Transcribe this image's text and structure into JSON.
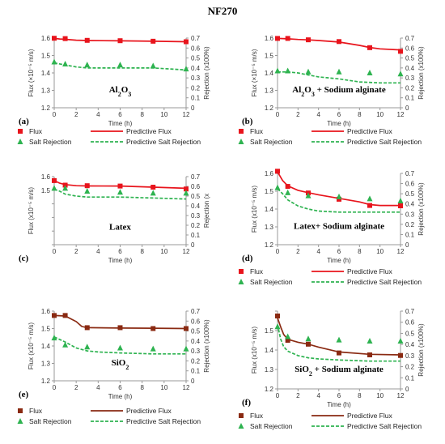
{
  "figure_title": "NF270",
  "chart_data": [
    {
      "id": "a",
      "panel_label": "(a)",
      "annotation": "Al2O3",
      "annotation_html": "Al<sub>2</sub>O<sub>3</sub>",
      "type": "line",
      "xlabel": "Time (h)",
      "ylabel": "Flux (×10⁻⁵ m/s)",
      "y2label": "Rejection (x100%)",
      "xlim": [
        0,
        12
      ],
      "xticks": [
        0,
        2,
        4,
        6,
        8,
        10,
        12
      ],
      "ylim": [
        1.2,
        1.6
      ],
      "yticks": [
        "1.2",
        "1.3",
        "1.4",
        "1.5",
        "1.6"
      ],
      "y2lim": [
        0,
        0.7
      ],
      "y2ticks": [
        "0",
        "0.1",
        "0.2",
        "0.3",
        "0.4",
        "0.5",
        "0.6",
        "0.7"
      ],
      "colors": {
        "flux": "#e8141c",
        "rejection": "#2eb350"
      },
      "series": [
        {
          "name": "Flux",
          "kind": "scatter",
          "marker": "square",
          "axis": "y",
          "x": [
            0,
            1,
            3,
            6,
            9,
            12
          ],
          "values": [
            1.599,
            1.597,
            1.587,
            1.585,
            1.582,
            1.579
          ]
        },
        {
          "name": "Predictive Flux",
          "kind": "line",
          "axis": "y",
          "x": [
            0,
            0.5,
            1,
            2,
            3,
            6,
            9,
            12
          ],
          "values": [
            1.598,
            1.595,
            1.593,
            1.588,
            1.586,
            1.584,
            1.582,
            1.579
          ]
        },
        {
          "name": "Salt Rejection",
          "kind": "scatter",
          "marker": "triangle",
          "axis": "y2",
          "x": [
            0,
            1,
            3,
            6,
            9,
            12
          ],
          "values": [
            0.46,
            0.44,
            0.43,
            0.43,
            0.42,
            0.39
          ]
        },
        {
          "name": "Predictive Salt Rejection",
          "kind": "line",
          "dash": true,
          "axis": "y2",
          "x": [
            0,
            0.5,
            1,
            2,
            3,
            6,
            9,
            12
          ],
          "values": [
            0.45,
            0.44,
            0.43,
            0.41,
            0.4,
            0.4,
            0.4,
            0.38
          ]
        }
      ],
      "legend": [
        "Flux",
        "Predictive Flux",
        "Salt Rejection",
        "Predictive Salt Rejection"
      ]
    },
    {
      "id": "b",
      "panel_label": "(b)",
      "annotation": "Al2O3 + Sodium alginate",
      "annotation_html": "Al<sub>2</sub>O<sub>3</sub> + Sodium alginate",
      "type": "line",
      "xlabel": "Time (h)",
      "ylabel": "Flux (×10⁻⁵ m/s)",
      "y2label": "Rejection (x100%)",
      "xlim": [
        0,
        12
      ],
      "xticks": [
        0,
        2,
        4,
        6,
        8,
        10,
        12
      ],
      "ylim": [
        1.2,
        1.6
      ],
      "yticks": [
        "1.2",
        "1.3",
        "1.4",
        "1.5",
        "1.6"
      ],
      "y2lim": [
        0,
        0.7
      ],
      "y2ticks": [
        "0",
        "0.1",
        "0.2",
        "0.3",
        "0.4",
        "0.5",
        "0.6",
        "0.7"
      ],
      "colors": {
        "flux": "#e8141c",
        "rejection": "#2eb350"
      },
      "series": [
        {
          "name": "Flux",
          "kind": "scatter",
          "marker": "square",
          "axis": "y",
          "x": [
            0,
            1,
            3,
            6,
            9,
            12
          ],
          "values": [
            1.598,
            1.598,
            1.59,
            1.58,
            1.545,
            1.524
          ]
        },
        {
          "name": "Predictive Flux",
          "kind": "line",
          "axis": "y",
          "x": [
            0,
            1,
            2,
            3,
            4,
            6,
            8,
            9,
            10,
            12
          ],
          "values": [
            1.598,
            1.596,
            1.592,
            1.59,
            1.586,
            1.577,
            1.558,
            1.546,
            1.538,
            1.532
          ]
        },
        {
          "name": "Salt Rejection",
          "kind": "scatter",
          "marker": "triangle",
          "axis": "y2",
          "x": [
            0,
            1,
            3,
            6,
            9,
            12
          ],
          "values": [
            0.37,
            0.37,
            0.36,
            0.36,
            0.35,
            0.34
          ]
        },
        {
          "name": "Predictive Salt Rejection",
          "kind": "line",
          "dash": true,
          "axis": "y2",
          "x": [
            0,
            1,
            2,
            3,
            4,
            6,
            8,
            10,
            12
          ],
          "values": [
            0.36,
            0.36,
            0.35,
            0.33,
            0.31,
            0.29,
            0.26,
            0.25,
            0.25
          ]
        }
      ],
      "legend": [
        "Flux",
        "Predictive Flux",
        "Salt Rejection",
        "Predictive Salt Rejection"
      ]
    },
    {
      "id": "c",
      "panel_label": "(c)",
      "annotation": "Latex",
      "annotation_html": "Latex",
      "type": "line",
      "xlabel": "Time (h)",
      "ylabel": "Flux (x10⁻⁵ m/s)",
      "y2label": "Rejection (x",
      "xlim": [
        0,
        12
      ],
      "xticks": [
        0,
        2,
        4,
        6,
        8,
        10,
        12
      ],
      "ylim": [
        1.0,
        1.6
      ],
      "yticks": [
        "",
        "",
        "",
        "",
        "1.5",
        "1.6"
      ],
      "y2lim": [
        0,
        0.7
      ],
      "y2ticks": [
        "0",
        "0.1",
        "0.2",
        "0.3",
        "0.4",
        "0.5",
        "0.6",
        "0.7"
      ],
      "colors": {
        "flux": "#e8141c",
        "rejection": "#2eb350"
      },
      "series": [
        {
          "name": "Flux",
          "kind": "scatter",
          "marker": "square",
          "axis": "y",
          "x": [
            0,
            1,
            3,
            6,
            9,
            12
          ],
          "values": [
            1.565,
            1.525,
            1.52,
            1.517,
            1.507,
            1.491
          ]
        },
        {
          "name": "Predictive Flux",
          "kind": "line",
          "axis": "y",
          "x": [
            0,
            0.5,
            1,
            2,
            3,
            6,
            9,
            12
          ],
          "values": [
            1.565,
            1.542,
            1.53,
            1.52,
            1.518,
            1.517,
            1.507,
            1.497
          ]
        },
        {
          "name": "Salt Rejection",
          "kind": "scatter",
          "marker": "triangle",
          "axis": "y2",
          "x": [
            0,
            1,
            3,
            6,
            9,
            12
          ],
          "values": [
            0.58,
            0.58,
            0.55,
            0.54,
            0.53,
            0.53
          ]
        },
        {
          "name": "Predictive Salt Rejection",
          "kind": "line",
          "dash": true,
          "axis": "y2",
          "x": [
            0,
            0.5,
            1,
            2,
            3,
            6,
            9,
            12
          ],
          "values": [
            0.57,
            0.55,
            0.52,
            0.5,
            0.49,
            0.49,
            0.48,
            0.47
          ]
        }
      ],
      "legend": []
    },
    {
      "id": "d",
      "panel_label": "(d)",
      "annotation": "Latex+ Sodium alginate",
      "annotation_html": "Latex+ Sodium alginate",
      "type": "line",
      "xlabel": "Time (h)",
      "ylabel": "Flux (x10⁻⁵ m/s)",
      "y2label": "Rejection (x100%)",
      "xlim": [
        0,
        12
      ],
      "xticks": [
        0,
        2,
        4,
        6,
        8,
        10,
        12
      ],
      "ylim": [
        1.2,
        1.6
      ],
      "yticks": [
        "1.2",
        "1.3",
        "1.4",
        "1.5",
        "1.6"
      ],
      "y2lim": [
        0,
        0.7
      ],
      "y2ticks": [
        "0",
        "0.1",
        "0.2",
        "0.3",
        "0.4",
        "0.5",
        "0.6",
        "0.7"
      ],
      "colors": {
        "flux": "#e8141c",
        "rejection": "#2eb350"
      },
      "series": [
        {
          "name": "Flux",
          "kind": "scatter",
          "marker": "square",
          "axis": "y",
          "x": [
            0,
            1,
            3,
            6,
            9,
            12
          ],
          "values": [
            1.612,
            1.527,
            1.49,
            1.455,
            1.42,
            1.418
          ]
        },
        {
          "name": "Predictive Flux",
          "kind": "line",
          "axis": "y",
          "x": [
            0,
            0.5,
            1,
            2,
            3,
            4,
            6,
            8,
            9,
            10,
            12
          ],
          "values": [
            1.608,
            1.56,
            1.53,
            1.505,
            1.492,
            1.48,
            1.46,
            1.44,
            1.425,
            1.42,
            1.42
          ]
        },
        {
          "name": "Salt Rejection",
          "kind": "scatter",
          "marker": "triangle",
          "axis": "y2",
          "x": [
            0,
            1,
            3,
            6,
            9,
            12
          ],
          "values": [
            0.56,
            0.51,
            0.48,
            0.47,
            0.45,
            0.43
          ]
        },
        {
          "name": "Predictive Salt Rejection",
          "kind": "line",
          "dash": true,
          "axis": "y2",
          "x": [
            0,
            0.5,
            1,
            2,
            3,
            4,
            6,
            9,
            12
          ],
          "values": [
            0.55,
            0.5,
            0.44,
            0.38,
            0.35,
            0.33,
            0.32,
            0.32,
            0.32
          ]
        }
      ],
      "legend": [
        "Flux",
        "Predictive Flux",
        "Salt Rejection",
        "Predictive Salt Rejection"
      ]
    },
    {
      "id": "e",
      "panel_label": "(e)",
      "annotation": "SiO2",
      "annotation_html": "SiO<sub>2</sub>",
      "type": "line",
      "xlabel": "Time (h)",
      "ylabel": "Flux (x10⁻⁵ m/s)",
      "y2label": "Rejection (x100%)",
      "xlim": [
        0,
        12
      ],
      "xticks": [
        0,
        2,
        4,
        6,
        8,
        10,
        12
      ],
      "ylim": [
        1.2,
        1.6
      ],
      "yticks": [
        "1.2",
        "1.3",
        "1.4",
        "1.5",
        "1.6"
      ],
      "y2lim": [
        0,
        0.7
      ],
      "y2ticks": [
        "0",
        "0.1",
        "0.2",
        "0.3",
        "0.4",
        "0.5",
        "0.6",
        "0.7"
      ],
      "colors": {
        "flux": "#8a2a12",
        "rejection": "#2eb350"
      },
      "series": [
        {
          "name": "Flux",
          "kind": "scatter",
          "marker": "square",
          "axis": "y",
          "x": [
            0,
            1,
            3,
            6,
            9,
            12
          ],
          "values": [
            1.575,
            1.575,
            1.505,
            1.505,
            1.5,
            1.5
          ]
        },
        {
          "name": "Predictive Flux",
          "kind": "line",
          "axis": "y",
          "x": [
            0,
            1,
            2,
            2.5,
            3,
            6,
            9,
            12
          ],
          "values": [
            1.575,
            1.572,
            1.54,
            1.512,
            1.505,
            1.503,
            1.502,
            1.5
          ]
        },
        {
          "name": "Salt Rejection",
          "kind": "scatter",
          "marker": "triangle",
          "axis": "y2",
          "x": [
            0,
            1,
            3,
            6,
            9,
            12
          ],
          "values": [
            0.43,
            0.36,
            0.34,
            0.33,
            0.32,
            0.32
          ]
        },
        {
          "name": "Predictive Salt Rejection",
          "kind": "line",
          "dash": true,
          "axis": "y2",
          "x": [
            0,
            1,
            2,
            3,
            4,
            6,
            9,
            12
          ],
          "values": [
            0.44,
            0.39,
            0.33,
            0.3,
            0.29,
            0.28,
            0.27,
            0.27
          ]
        }
      ],
      "legend": [
        "Flux",
        "Predictive Flux",
        "Salt Rejection",
        "Predictive Salt Rejection"
      ]
    },
    {
      "id": "f",
      "panel_label": "(f)",
      "annotation": "SiO2 + Sodium alginate",
      "annotation_html": "SiO<sub>2</sub> + Sodium alginate",
      "type": "line",
      "xlabel": "Time (h)",
      "ylabel": "Flux (x10⁻⁵ m/s)",
      "y2label": "Rejection (x100%)",
      "xlim": [
        0,
        12
      ],
      "xticks": [
        0,
        2,
        4,
        6,
        8,
        10,
        12
      ],
      "ylim": [
        1.2,
        1.6
      ],
      "yticks": [
        "1.2",
        "1.3",
        "1.4",
        "1.5",
        ""
      ],
      "y2lim": [
        0,
        0.7
      ],
      "y2ticks": [
        "0",
        "0.1",
        "0.2",
        "0.3",
        "0.4",
        "0.5",
        "0.6",
        "0.7"
      ],
      "colors": {
        "flux": "#8a2a12",
        "rejection": "#2eb350"
      },
      "series": [
        {
          "name": "Flux",
          "kind": "scatter",
          "marker": "square",
          "axis": "y",
          "x": [
            0,
            1,
            3,
            6,
            9,
            12
          ],
          "values": [
            1.575,
            1.45,
            1.43,
            1.385,
            1.375,
            1.372
          ]
        },
        {
          "name": "Predictive Flux",
          "kind": "line",
          "axis": "y",
          "x": [
            0,
            0.3,
            0.6,
            1,
            2,
            3,
            4,
            6,
            9,
            12
          ],
          "values": [
            1.565,
            1.52,
            1.48,
            1.455,
            1.44,
            1.43,
            1.415,
            1.39,
            1.378,
            1.375
          ]
        },
        {
          "name": "Salt Rejection",
          "kind": "scatter",
          "marker": "triangle",
          "axis": "y2",
          "x": [
            0,
            1,
            3,
            6,
            9,
            12
          ],
          "values": [
            0.56,
            0.47,
            0.45,
            0.44,
            0.43,
            0.43
          ]
        },
        {
          "name": "Predictive Salt Rejection",
          "kind": "line",
          "dash": true,
          "axis": "y2",
          "x": [
            0,
            0.3,
            0.6,
            1,
            2,
            3,
            4,
            6,
            9,
            12
          ],
          "values": [
            0.58,
            0.45,
            0.38,
            0.34,
            0.3,
            0.28,
            0.27,
            0.26,
            0.25,
            0.25
          ]
        }
      ],
      "legend": [
        "Flux",
        "Predictive Flux",
        "Salt Rejection",
        "Predictive Salt Rejection"
      ]
    }
  ]
}
